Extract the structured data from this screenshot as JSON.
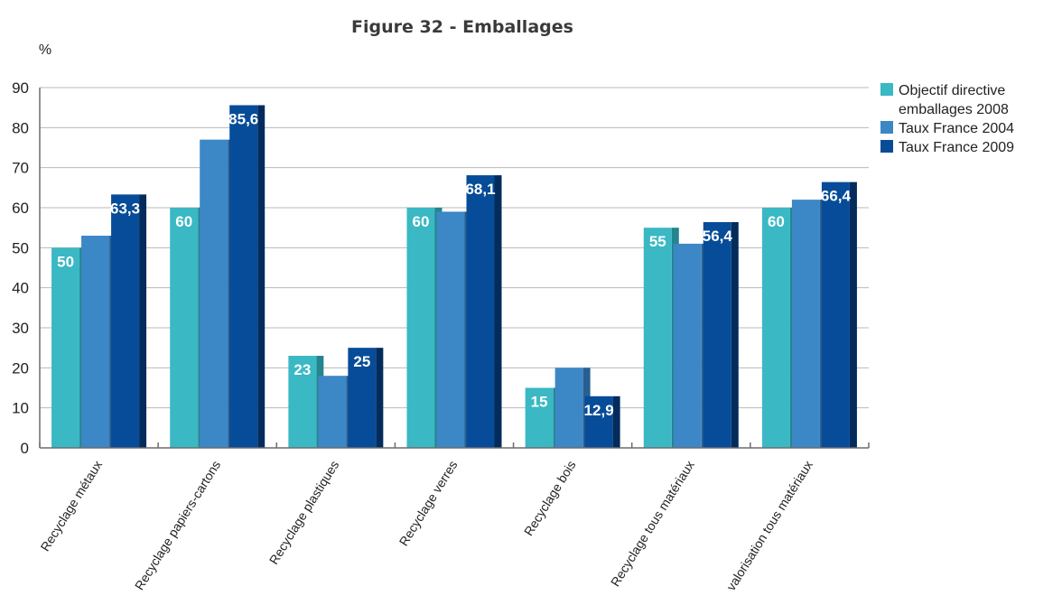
{
  "chart_data": {
    "type": "bar",
    "title": "Figure 32 - Emballages",
    "ylabel": "%",
    "ylim": [
      0,
      90
    ],
    "yticks": [
      0,
      10,
      20,
      30,
      40,
      50,
      60,
      70,
      80,
      90
    ],
    "grid": true,
    "legend_position": "top-right",
    "categories": [
      "Recyclage métaux",
      "Recyclage papiers-cartons",
      "Recyclage plastiques",
      "Recyclage verres",
      "Recyclage bois",
      "Recyclage tous matériaux",
      "Valorisation tous matériaux"
    ],
    "category_display": [
      "Recyclage métaux",
      "Recyclage papiers-cartons",
      "Recyclage plastiques",
      "Recyclage verres",
      "Recyclage bois",
      "Recyclage tous matériaux",
      "valorisation tous matériaux"
    ],
    "series": [
      {
        "name": "Objectif directive emballages 2008",
        "legend_lines": [
          "Objectif directive",
          "emballages 2008"
        ],
        "color": "#3ab8c4",
        "shade": "#23858e",
        "values": [
          50,
          60,
          23,
          60,
          15,
          55,
          60
        ],
        "labels": [
          "50",
          "60",
          "23",
          "60",
          "15",
          "55",
          "60"
        ]
      },
      {
        "name": "Taux France 2004",
        "legend_lines": [
          "Taux France 2004"
        ],
        "color": "#3c87c6",
        "shade": "#285f90",
        "values": [
          53,
          77,
          18,
          59,
          20,
          51,
          62
        ],
        "labels": [
          "",
          "",
          "",
          "",
          "",
          "",
          ""
        ]
      },
      {
        "name": "Taux France 2009",
        "legend_lines": [
          "Taux France 2009"
        ],
        "color": "#064c98",
        "shade": "#032c5c",
        "values": [
          63.3,
          85.6,
          25,
          68.1,
          12.9,
          56.4,
          66.4
        ],
        "labels": [
          "63,3",
          "85,6",
          "25",
          "68,1",
          "12,9",
          "56,4",
          "66,4"
        ]
      }
    ]
  }
}
